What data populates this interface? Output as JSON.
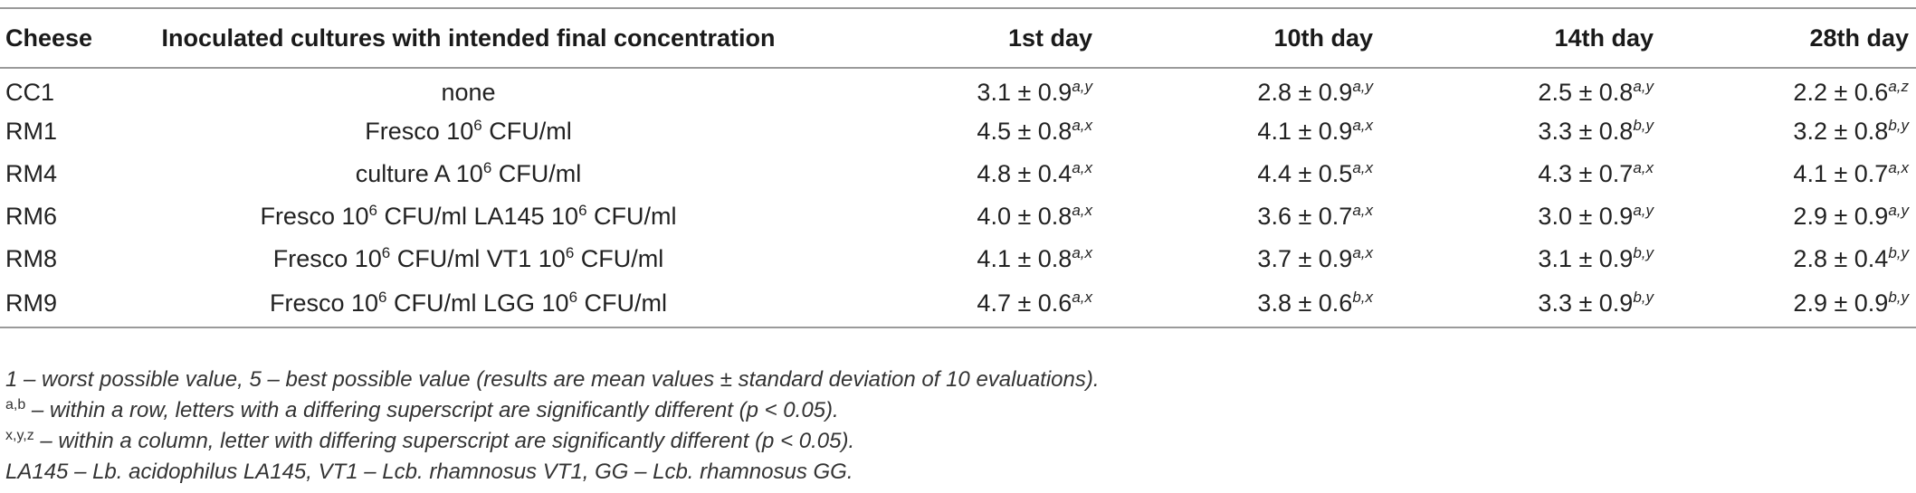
{
  "table": {
    "headers": [
      "Cheese",
      "Inoculated cultures with intended final concentration",
      "1st day",
      "10th day",
      "14th day",
      "28th day"
    ],
    "rows": [
      {
        "cheese": "CC1",
        "culture": [
          {
            "t": "none"
          }
        ],
        "values": [
          {
            "v": "3.1 ± 0.9",
            "s": "a,y"
          },
          {
            "v": "2.8 ± 0.9",
            "s": "a,y"
          },
          {
            "v": "2.5 ± 0.8",
            "s": "a,y"
          },
          {
            "v": "2.2 ± 0.6",
            "s": "a,z"
          }
        ]
      },
      {
        "cheese": "RM1",
        "culture": [
          {
            "t": "Fresco 10"
          },
          {
            "sup": "6"
          },
          {
            "t": " CFU/ml"
          }
        ],
        "values": [
          {
            "v": "4.5 ± 0.8",
            "s": "a,x"
          },
          {
            "v": "4.1 ± 0.9",
            "s": "a,x"
          },
          {
            "v": "3.3 ± 0.8",
            "s": "b,y"
          },
          {
            "v": "3.2 ± 0.8",
            "s": "b,y"
          }
        ]
      },
      {
        "cheese": "RM4",
        "culture": [
          {
            "t": "culture A 10"
          },
          {
            "sup": "6"
          },
          {
            "t": " CFU/ml"
          }
        ],
        "values": [
          {
            "v": "4.8 ± 0.4",
            "s": "a,x"
          },
          {
            "v": "4.4 ± 0.5",
            "s": "a,x"
          },
          {
            "v": "4.3 ± 0.7",
            "s": "a,x"
          },
          {
            "v": "4.1 ± 0.7",
            "s": "a,x"
          }
        ]
      },
      {
        "cheese": "RM6",
        "culture": [
          {
            "t": "Fresco 10"
          },
          {
            "sup": "6"
          },
          {
            "t": " CFU/ml LA145 10"
          },
          {
            "sup": "6"
          },
          {
            "t": " CFU/ml"
          }
        ],
        "values": [
          {
            "v": "4.0 ± 0.8",
            "s": "a,x"
          },
          {
            "v": "3.6 ± 0.7",
            "s": "a,x"
          },
          {
            "v": "3.0 ± 0.9",
            "s": "a,y"
          },
          {
            "v": "2.9 ± 0.9",
            "s": "a,y"
          }
        ]
      },
      {
        "cheese": "RM8",
        "culture": [
          {
            "t": "Fresco 10"
          },
          {
            "sup": "6"
          },
          {
            "t": " CFU/ml VT1 10"
          },
          {
            "sup": "6"
          },
          {
            "t": " CFU/ml"
          }
        ],
        "values": [
          {
            "v": "4.1 ± 0.8",
            "s": "a,x"
          },
          {
            "v": "3.7 ± 0.9",
            "s": "a,x"
          },
          {
            "v": "3.1 ± 0.9",
            "s": "b,y"
          },
          {
            "v": "2.8 ± 0.4",
            "s": "b,y"
          }
        ]
      },
      {
        "cheese": "RM9",
        "culture": [
          {
            "t": "Fresco 10"
          },
          {
            "sup": "6"
          },
          {
            "t": " CFU/ml LGG 10"
          },
          {
            "sup": "6"
          },
          {
            "t": " CFU/ml"
          }
        ],
        "values": [
          {
            "v": "4.7 ± 0.6",
            "s": "a,x"
          },
          {
            "v": "3.8 ± 0.6",
            "s": "b,x"
          },
          {
            "v": "3.3 ± 0.9",
            "s": "b,y"
          },
          {
            "v": "2.9 ± 0.9",
            "s": "b,y"
          }
        ]
      }
    ]
  },
  "footnotes": {
    "scale": "1 – worst possible value, 5 – best possible value (results are mean values ± standard deviation of 10 evaluations).",
    "row_sup": "a,b",
    "row_text": " – within a row, letters with a differing superscript are significantly different (p < 0.05).",
    "col_sup": "x,y,z",
    "col_text": " – within a column, letter with differing superscript are significantly different (p < 0.05).",
    "abbrev": "LA145 – Lb. acidophilus LA145, VT1 – Lcb. rhamnosus VT1, GG – Lcb. rhamnosus GG."
  }
}
